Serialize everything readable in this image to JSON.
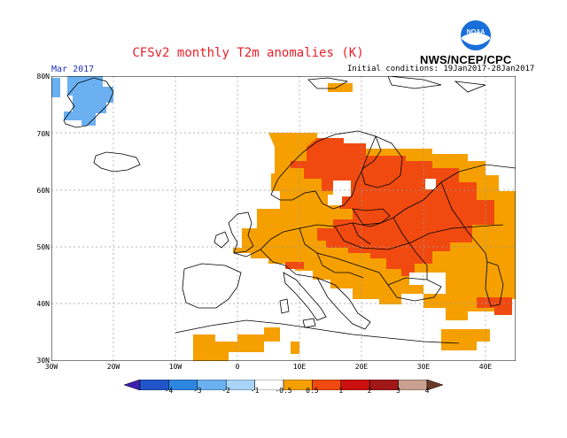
{
  "title": "CFSv2 monthly T2m anomalies (K)",
  "agency": "NWS/NCEP/CPC",
  "logo_text": "NOAA",
  "period": "Mar 2017",
  "initial_conditions": "Initial conditions: 19Jan2017-28Jan2017",
  "lat_labels": [
    "80N",
    "70N",
    "60N",
    "50N",
    "40N",
    "30N"
  ],
  "lon_labels": [
    "30W",
    "20W",
    "10W",
    "0",
    "10E",
    "20E",
    "30E",
    "40E"
  ],
  "colorbar": {
    "labels": [
      "-4",
      "-3",
      "-2",
      "-1",
      "-0.5",
      "0.5",
      "1",
      "2",
      "3",
      "4"
    ],
    "colors": [
      "#3b1fb0",
      "#2155c8",
      "#2d86e0",
      "#6bb0f0",
      "#a8d4f8",
      "#ffffff",
      "#f5a000",
      "#f04a10",
      "#cc1010",
      "#a01818",
      "#c8a090",
      "#6a3a28"
    ]
  },
  "anomaly_colors": {
    "warm_0_5_1": "#f5a000",
    "warm_1_2": "#f04a10",
    "cool_minus1": "#6bb0f0"
  }
}
